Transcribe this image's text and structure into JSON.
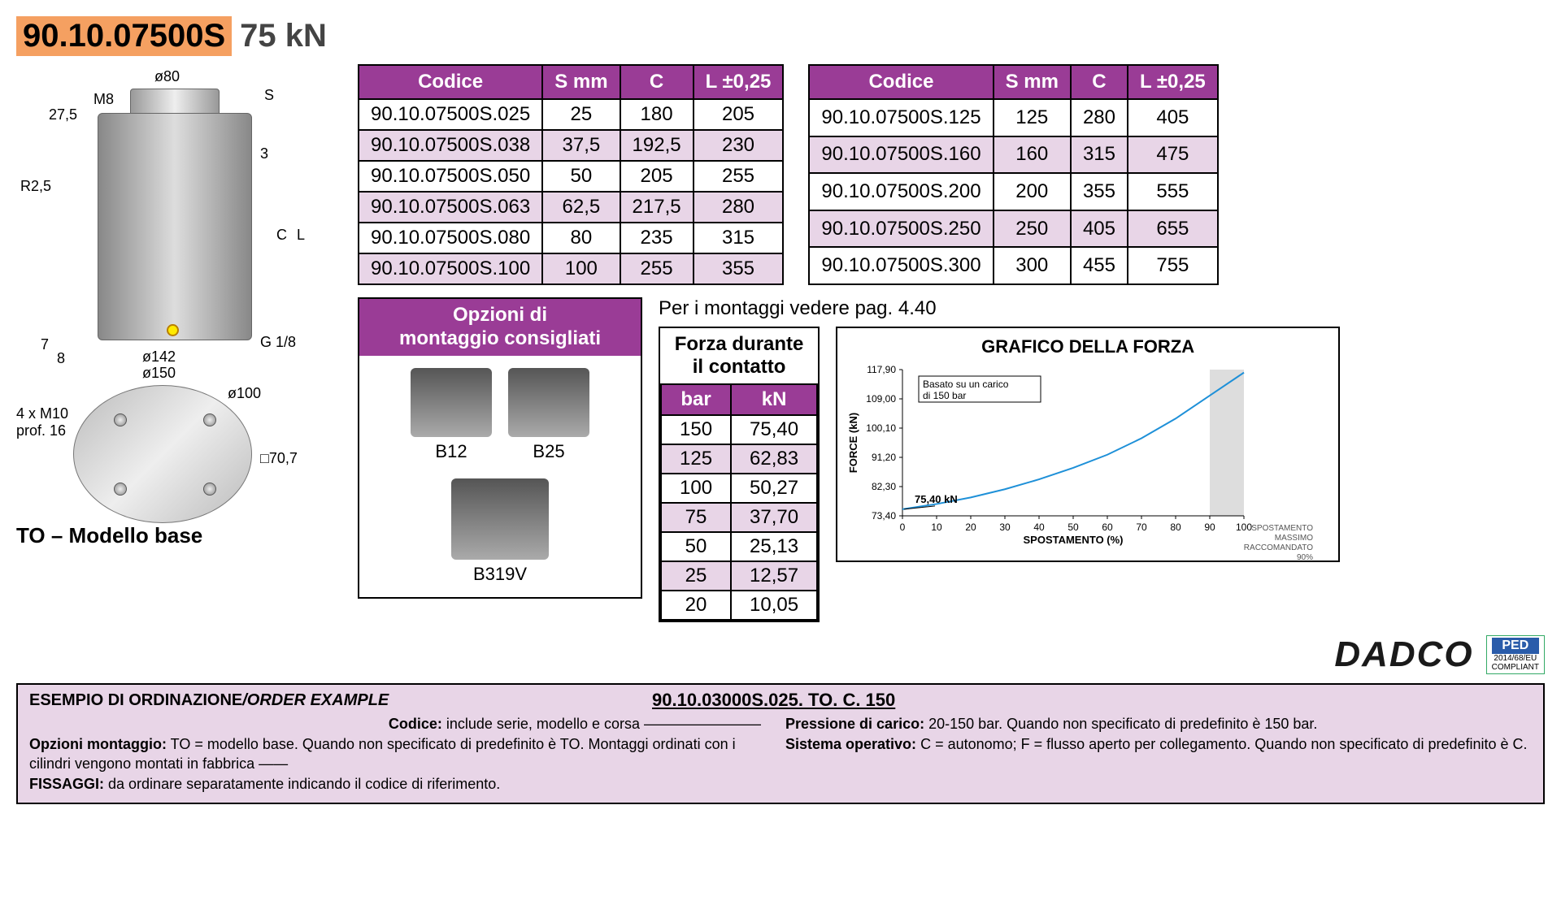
{
  "title": {
    "code": "90.10.07500S",
    "force": "75 kN"
  },
  "diagram_labels": {
    "d80": "ø80",
    "m8": "M8",
    "s": "S",
    "c": "C",
    "l": "L",
    "h275": "27,5",
    "r25": "R2,5",
    "h3": "3",
    "h7": "7",
    "h8": "8",
    "d142": "ø142",
    "d150": "ø150",
    "g18": "G 1/8",
    "d100": "ø100",
    "bolts": "4 x M10\nprof. 16",
    "sq707": "□70,7"
  },
  "model_base": "TO – Modello base",
  "spec_table": {
    "headers": [
      "Codice",
      "S mm",
      "C",
      "L ±0,25"
    ],
    "left_rows": [
      [
        "90.10.07500S.025",
        "25",
        "180",
        "205"
      ],
      [
        "90.10.07500S.038",
        "37,5",
        "192,5",
        "230"
      ],
      [
        "90.10.07500S.050",
        "50",
        "205",
        "255"
      ],
      [
        "90.10.07500S.063",
        "62,5",
        "217,5",
        "280"
      ],
      [
        "90.10.07500S.080",
        "80",
        "235",
        "315"
      ],
      [
        "90.10.07500S.100",
        "100",
        "255",
        "355"
      ]
    ],
    "right_rows": [
      [
        "90.10.07500S.125",
        "125",
        "280",
        "405"
      ],
      [
        "90.10.07500S.160",
        "160",
        "315",
        "475"
      ],
      [
        "90.10.07500S.200",
        "200",
        "355",
        "555"
      ],
      [
        "90.10.07500S.250",
        "250",
        "405",
        "655"
      ],
      [
        "90.10.07500S.300",
        "300",
        "455",
        "755"
      ]
    ],
    "alt_pattern": [
      false,
      true,
      false,
      true,
      false,
      true
    ],
    "header_bg": "#9a3c96",
    "alt_bg": "#e8d5e7"
  },
  "mount": {
    "header": "Opzioni di\nmontaggio consigliati",
    "items": [
      "B12",
      "B25",
      "B319V"
    ]
  },
  "see_mounts": "Per i montaggi vedere pag. 4.40",
  "force_table": {
    "title": "Forza durante\nil contatto",
    "headers": [
      "bar",
      "kN"
    ],
    "rows": [
      [
        "150",
        "75,40"
      ],
      [
        "125",
        "62,83"
      ],
      [
        "100",
        "50,27"
      ],
      [
        "75",
        "37,70"
      ],
      [
        "50",
        "25,13"
      ],
      [
        "25",
        "12,57"
      ],
      [
        "20",
        "10,05"
      ]
    ],
    "alt_pattern": [
      false,
      true,
      false,
      true,
      false,
      true,
      false
    ]
  },
  "chart": {
    "title": "GRAFICO DELLA FORZA",
    "note_box": "Basato su un carico\ndi 150 bar",
    "point_label": "75,40 kN",
    "y_label": "FORCE (kN)",
    "x_label": "SPOSTAMENTO (%)",
    "y_ticks": [
      "117,90",
      "109,00",
      "100,10",
      "91,20",
      "82,30",
      "73,40"
    ],
    "y_values": [
      117.9,
      109.0,
      100.1,
      91.2,
      82.3,
      73.4
    ],
    "x_ticks": [
      "0",
      "10",
      "20",
      "30",
      "40",
      "50",
      "60",
      "70",
      "80",
      "90",
      "100"
    ],
    "curve": [
      {
        "x": 0,
        "y": 75.4
      },
      {
        "x": 10,
        "y": 77
      },
      {
        "x": 20,
        "y": 79
      },
      {
        "x": 30,
        "y": 81.5
      },
      {
        "x": 40,
        "y": 84.5
      },
      {
        "x": 50,
        "y": 88
      },
      {
        "x": 60,
        "y": 92
      },
      {
        "x": 70,
        "y": 97
      },
      {
        "x": 80,
        "y": 103
      },
      {
        "x": 90,
        "y": 110
      },
      {
        "x": 100,
        "y": 117
      }
    ],
    "footer": "SPOSTAMENTO\nMASSIMO\nRACCOMANDATO\n90%",
    "line_color": "#1e90d8",
    "grid_color": "#cccccc",
    "x_range": [
      0,
      100
    ],
    "y_range": [
      73.4,
      117.9
    ],
    "recommend_x": 90
  },
  "brand": "DADCO",
  "ped": {
    "top": "PED",
    "line1": "2014/68/EU",
    "line2": "COMPLIANT"
  },
  "order": {
    "title_it": "ESEMPIO DI ORDINAZIONE",
    "title_en": "/ORDER EXAMPLE",
    "code": "90.10.03000S.025. TO. C. 150",
    "codice_lbl": "Codice:",
    "codice_txt": " include serie, modello e corsa",
    "opz_lbl": "Opzioni montaggio:",
    "opz_txt": " TO = modello base. Quando non specificato di predefinito è TO. Montaggi ordinati con i cilindri vengono montati in fabbrica",
    "fiss_lbl": "FISSAGGI:",
    "fiss_txt": " da ordinare separatamente indicando il codice di riferimento.",
    "press_lbl": "Pressione di carico:",
    "press_txt": " 20-150 bar. Quando non specificato di predefinito è 150 bar.",
    "sys_lbl": "Sistema operativo:",
    "sys_txt": " C = autonomo; F = flusso aperto per collegamento. Quando non specificato di predefinito è C."
  }
}
